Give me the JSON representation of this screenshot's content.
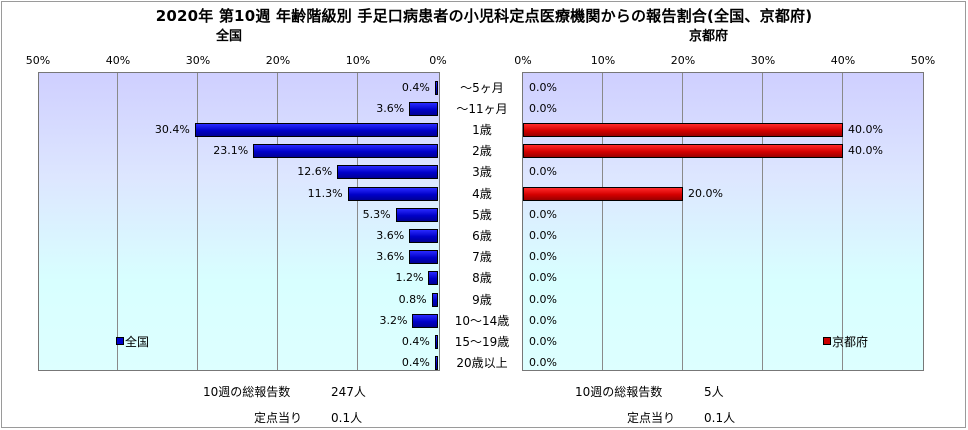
{
  "title": "2020年 第10週 年齢階級別 手足口病患者の小児科定点医療機関からの報告割合(全国、京都府)",
  "panels": {
    "zenkoku": {
      "heading": "全国",
      "legend": "全国",
      "reports_label": "10週の総報告数",
      "reports_value": "247人",
      "per_point_label": "定点当り",
      "per_point_value": "0.1人"
    },
    "kyoto": {
      "heading": "京都府",
      "legend": "京都府",
      "reports_label": "10週の総報告数",
      "reports_value": "5人",
      "per_point_label": "定点当り",
      "per_point_value": "0.1人"
    }
  },
  "chart_data": [
    {
      "type": "bar",
      "orientation": "horizontal",
      "direction": "right-to-left",
      "title": "全国",
      "categories": [
        "～5ヶ月",
        "～11ヶ月",
        "1歳",
        "2歳",
        "3歳",
        "4歳",
        "5歳",
        "6歳",
        "7歳",
        "8歳",
        "9歳",
        "10～14歳",
        "15～19歳",
        "20歳以上"
      ],
      "series": [
        {
          "name": "全国",
          "color": "#0000cc",
          "values": [
            0.4,
            3.6,
            30.4,
            23.1,
            12.6,
            11.3,
            5.3,
            3.6,
            3.6,
            1.2,
            0.8,
            3.2,
            0.4,
            0.4
          ],
          "value_labels": [
            "0.4%",
            "3.6%",
            "30.4%",
            "23.1%",
            "12.6%",
            "11.3%",
            "5.3%",
            "3.6%",
            "3.6%",
            "1.2%",
            "0.8%",
            "3.2%",
            "0.4%",
            "0.4%"
          ]
        }
      ],
      "xlim": [
        0,
        50
      ],
      "ticks": [
        "0%",
        "10%",
        "20%",
        "30%",
        "40%",
        "50%"
      ],
      "grid": true,
      "legend_position": "bottom-left"
    },
    {
      "type": "bar",
      "orientation": "horizontal",
      "direction": "left-to-right",
      "title": "京都府",
      "categories": [
        "～5ヶ月",
        "～11ヶ月",
        "1歳",
        "2歳",
        "3歳",
        "4歳",
        "5歳",
        "6歳",
        "7歳",
        "8歳",
        "9歳",
        "10～14歳",
        "15～19歳",
        "20歳以上"
      ],
      "series": [
        {
          "name": "京都府",
          "color": "#cc0000",
          "values": [
            0,
            0,
            40.0,
            40.0,
            0,
            20.0,
            0,
            0,
            0,
            0,
            0,
            0,
            0,
            0
          ],
          "value_labels": [
            "0.0%",
            "0.0%",
            "40.0%",
            "40.0%",
            "0.0%",
            "20.0%",
            "0.0%",
            "0.0%",
            "0.0%",
            "0.0%",
            "0.0%",
            "0.0%",
            "0.0%",
            "0.0%"
          ]
        }
      ],
      "xlim": [
        0,
        50
      ],
      "ticks": [
        "0%",
        "10%",
        "20%",
        "30%",
        "40%",
        "50%"
      ],
      "grid": true,
      "legend_position": "bottom-right"
    }
  ]
}
